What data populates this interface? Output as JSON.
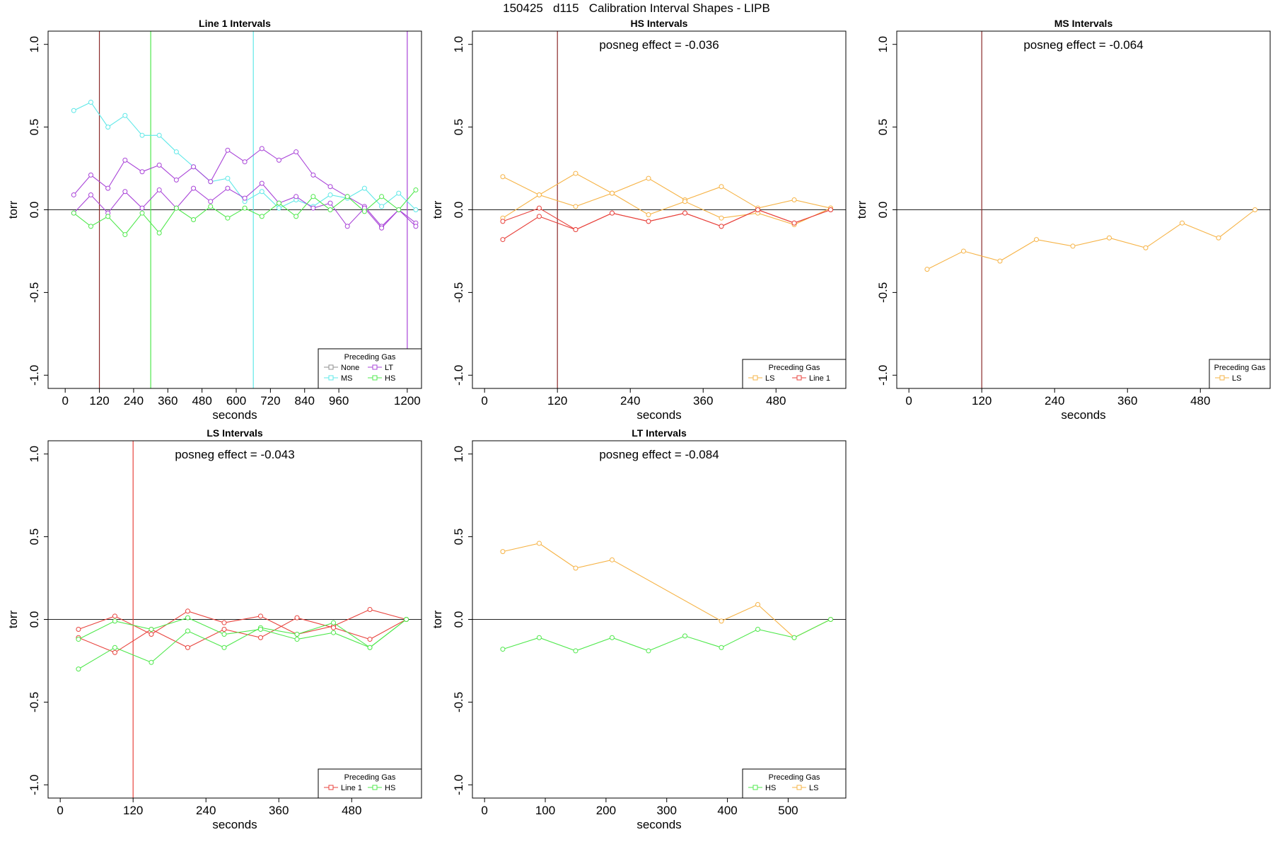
{
  "figure": {
    "title": "150425   d115   Calibration Interval Shapes - LIPB"
  },
  "colors": {
    "Line 1": "#e8433d",
    "LS": "#f6b346",
    "HS": "#4fe84c",
    "MS": "#5fe8e8",
    "LT": "#a944d8",
    "None": "#8f8f8f",
    "Zero": "#333333",
    "Marker120": "#8b2a2a"
  },
  "chart_data": [
    {
      "id": "line1",
      "type": "line",
      "title": "Line 1 Intervals",
      "xlabel": "seconds",
      "ylabel": "torr",
      "xlim": [
        -60,
        1250
      ],
      "ylim": [
        -1.08,
        1.08
      ],
      "xticks": [
        0,
        120,
        240,
        360,
        480,
        600,
        720,
        840,
        960,
        1200
      ],
      "yticks": [
        -1.0,
        -0.5,
        0.0,
        0.5,
        1.0
      ],
      "vlines": [
        {
          "x": 120,
          "color": "Marker120"
        },
        {
          "x": 300,
          "color": "HS"
        },
        {
          "x": 660,
          "color": "MS"
        },
        {
          "x": 1200,
          "color": "LT"
        }
      ],
      "annotation": "",
      "legend": {
        "title": "Preceding Gas",
        "columns": 2,
        "items": [
          "None",
          "LT",
          "MS",
          "HS"
        ]
      },
      "series": [
        {
          "name": "MS",
          "color": "MS",
          "x": [
            30,
            90,
            150,
            210,
            270,
            330,
            390,
            450,
            510,
            570,
            630,
            690,
            750,
            810,
            870,
            930,
            990,
            1050,
            1110,
            1170,
            1230
          ],
          "y": [
            0.6,
            0.65,
            0.5,
            0.57,
            0.45,
            0.45,
            0.35,
            0.26,
            0.17,
            0.19,
            0.05,
            0.11,
            0.01,
            0.06,
            0.02,
            0.09,
            0.07,
            0.13,
            0.02,
            0.1,
            0.0
          ]
        },
        {
          "name": "LT",
          "color": "LT",
          "x": [
            30,
            90,
            150,
            210,
            270,
            330,
            390,
            450,
            510,
            570,
            630,
            690,
            750,
            810,
            870,
            930,
            990,
            1050,
            1110,
            1170,
            1230
          ],
          "y": [
            0.09,
            0.21,
            0.13,
            0.3,
            0.23,
            0.27,
            0.18,
            0.26,
            0.17,
            0.36,
            0.29,
            0.37,
            0.3,
            0.35,
            0.21,
            0.14,
            0.08,
            0.02,
            -0.1,
            0.0,
            -0.08
          ]
        },
        {
          "name": "LT",
          "color": "LT",
          "x": [
            30,
            90,
            150,
            210,
            270,
            330,
            390,
            450,
            510,
            570,
            630,
            690,
            750,
            810,
            870,
            930,
            990,
            1050,
            1110,
            1170,
            1230
          ],
          "y": [
            -0.02,
            0.09,
            -0.02,
            0.11,
            0.01,
            0.12,
            0.01,
            0.13,
            0.05,
            0.13,
            0.07,
            0.16,
            0.04,
            0.08,
            0.01,
            0.04,
            -0.1,
            0.01,
            -0.11,
            0.0,
            -0.1
          ]
        },
        {
          "name": "HS",
          "color": "HS",
          "x": [
            30,
            90,
            150,
            210,
            270,
            330,
            390,
            450,
            510,
            570,
            630,
            690,
            750,
            810,
            870,
            930,
            990,
            1050,
            1110,
            1170,
            1230
          ],
          "y": [
            -0.02,
            -0.1,
            -0.04,
            -0.15,
            -0.02,
            -0.14,
            0.01,
            -0.06,
            0.02,
            -0.05,
            0.01,
            -0.04,
            0.04,
            -0.04,
            0.08,
            0.0,
            0.08,
            -0.01,
            0.08,
            0.0,
            0.12
          ]
        }
      ]
    },
    {
      "id": "hs",
      "type": "line",
      "title": "HS Intervals",
      "xlabel": "seconds",
      "ylabel": "torr",
      "xlim": [
        -20,
        595
      ],
      "ylim": [
        -1.08,
        1.08
      ],
      "xticks": [
        0,
        120,
        240,
        360,
        480
      ],
      "yticks": [
        -1.0,
        -0.5,
        0.0,
        0.5,
        1.0
      ],
      "vlines": [
        {
          "x": 120,
          "color": "Marker120"
        }
      ],
      "annotation": "posneg effect = -0.036",
      "legend": {
        "title": "Preceding Gas",
        "columns": 2,
        "items": [
          "LS",
          "Line 1"
        ]
      },
      "series": [
        {
          "name": "LS",
          "color": "LS",
          "x": [
            30,
            90,
            150,
            210,
            270,
            330,
            390,
            450,
            510,
            570
          ],
          "y": [
            0.2,
            0.09,
            0.22,
            0.1,
            0.19,
            0.06,
            0.14,
            0.01,
            0.06,
            0.01
          ]
        },
        {
          "name": "LS",
          "color": "LS",
          "x": [
            30,
            90,
            150,
            210,
            270,
            330,
            390,
            450,
            510,
            570
          ],
          "y": [
            -0.05,
            0.09,
            0.02,
            0.1,
            -0.03,
            0.05,
            -0.05,
            -0.02,
            -0.09,
            0.01
          ]
        },
        {
          "name": "Line 1",
          "color": "Line 1",
          "x": [
            30,
            90,
            150,
            210,
            270,
            330,
            390,
            450,
            510,
            570
          ],
          "y": [
            -0.07,
            0.01,
            -0.12,
            -0.02,
            -0.07,
            -0.02,
            -0.1,
            0.0,
            -0.08,
            0.0
          ]
        },
        {
          "name": "Line 1",
          "color": "Line 1",
          "x": [
            30,
            90,
            150,
            210,
            270,
            330,
            390,
            450,
            510,
            570
          ],
          "y": [
            -0.18,
            -0.04,
            -0.12,
            -0.02,
            -0.07,
            -0.02,
            -0.1,
            0.0,
            -0.08,
            0.0
          ]
        }
      ]
    },
    {
      "id": "ms",
      "type": "line",
      "title": "MS Intervals",
      "xlabel": "seconds",
      "ylabel": "torr",
      "xlim": [
        -20,
        595
      ],
      "ylim": [
        -1.08,
        1.08
      ],
      "xticks": [
        0,
        120,
        240,
        360,
        480
      ],
      "yticks": [
        -1.0,
        -0.5,
        0.0,
        0.5,
        1.0
      ],
      "vlines": [
        {
          "x": 120,
          "color": "Marker120"
        }
      ],
      "annotation": "posneg effect = -0.064",
      "legend": {
        "title": "Preceding Gas",
        "columns": 1,
        "items": [
          "LS"
        ]
      },
      "series": [
        {
          "name": "LS",
          "color": "LS",
          "x": [
            30,
            90,
            150,
            210,
            270,
            330,
            390,
            450,
            510,
            570
          ],
          "y": [
            -0.36,
            -0.25,
            -0.31,
            -0.18,
            -0.22,
            -0.17,
            -0.23,
            -0.08,
            -0.17,
            0.0
          ]
        }
      ]
    },
    {
      "id": "ls",
      "type": "line",
      "title": "LS Intervals",
      "xlabel": "seconds",
      "ylabel": "torr",
      "xlim": [
        -20,
        595
      ],
      "ylim": [
        -1.08,
        1.08
      ],
      "xticks": [
        0,
        120,
        240,
        360,
        480
      ],
      "yticks": [
        -1.0,
        -0.5,
        0.0,
        0.5,
        1.0
      ],
      "vlines": [
        {
          "x": 120,
          "color": "Line 1"
        }
      ],
      "annotation": "posneg effect = -0.043",
      "legend": {
        "title": "Preceding Gas",
        "columns": 2,
        "items": [
          "Line 1",
          "HS"
        ]
      },
      "series": [
        {
          "name": "Line 1",
          "color": "Line 1",
          "x": [
            30,
            90,
            150,
            210,
            270,
            330,
            390,
            450,
            510,
            570
          ],
          "y": [
            -0.06,
            0.02,
            -0.09,
            0.05,
            -0.02,
            0.02,
            -0.09,
            -0.04,
            0.06,
            0.0
          ]
        },
        {
          "name": "Line 1",
          "color": "Line 1",
          "x": [
            30,
            90,
            150,
            210,
            270,
            330,
            390,
            450,
            510,
            570
          ],
          "y": [
            -0.11,
            -0.2,
            -0.06,
            -0.17,
            -0.06,
            -0.11,
            0.01,
            -0.05,
            -0.12,
            0.0
          ]
        },
        {
          "name": "HS",
          "color": "HS",
          "x": [
            30,
            90,
            150,
            210,
            270,
            330,
            390,
            450,
            510,
            570
          ],
          "y": [
            -0.3,
            -0.17,
            -0.26,
            -0.07,
            -0.17,
            -0.05,
            -0.09,
            -0.02,
            -0.17,
            0.0
          ]
        },
        {
          "name": "HS",
          "color": "HS",
          "x": [
            30,
            90,
            150,
            210,
            270,
            330,
            390,
            450,
            510,
            570
          ],
          "y": [
            -0.12,
            -0.01,
            -0.06,
            0.01,
            -0.09,
            -0.06,
            -0.12,
            -0.08,
            -0.17,
            0.0
          ]
        }
      ]
    },
    {
      "id": "lt",
      "type": "line",
      "title": "LT Intervals",
      "xlabel": "seconds",
      "ylabel": "torr",
      "xlim": [
        -20,
        595
      ],
      "ylim": [
        -1.08,
        1.08
      ],
      "xticks": [
        0,
        100,
        200,
        300,
        400,
        500
      ],
      "yticks": [
        -1.0,
        -0.5,
        0.0,
        0.5,
        1.0
      ],
      "vlines": [],
      "annotation": "posneg effect = -0.084",
      "legend": {
        "title": "Preceding Gas",
        "columns": 2,
        "items": [
          "HS",
          "LS"
        ]
      },
      "series": [
        {
          "name": "LS",
          "color": "LS",
          "x": [
            30,
            90,
            150,
            210,
            390,
            450,
            510,
            570
          ],
          "y": [
            0.41,
            0.46,
            0.31,
            0.36,
            -0.01,
            0.09,
            -0.11,
            0.0
          ]
        },
        {
          "name": "HS",
          "color": "HS",
          "x": [
            30,
            90,
            150,
            210,
            270,
            330,
            390,
            450,
            510,
            570
          ],
          "y": [
            -0.18,
            -0.11,
            -0.19,
            -0.11,
            -0.19,
            -0.1,
            -0.17,
            -0.06,
            -0.11,
            0.0
          ]
        }
      ]
    }
  ]
}
